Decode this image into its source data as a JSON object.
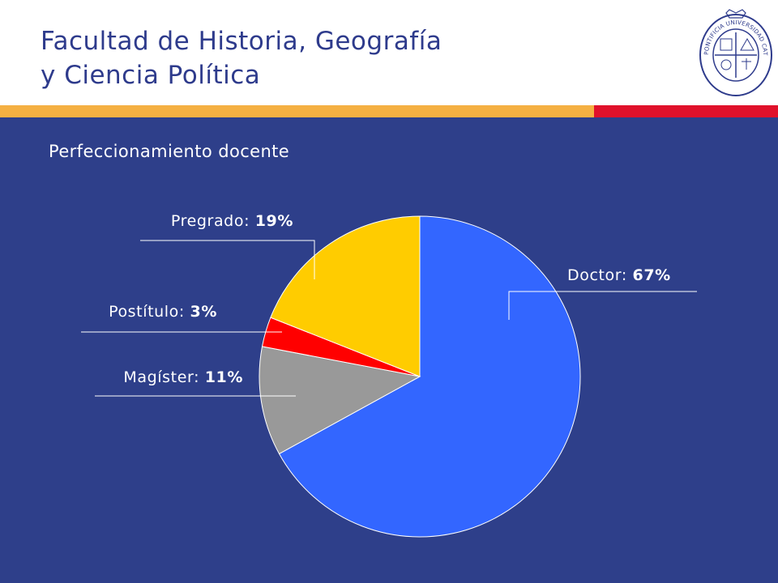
{
  "header": {
    "title_line1": "Facultad de Historia, Geografía",
    "title_line2": "y Ciencia Política",
    "seal_text": "PONTIFICIA UNIVERSIDAD CATÓLICA DE CHILE"
  },
  "colors": {
    "title": "#2e3b8c",
    "background": "#2e3f8a",
    "stripe_orange": "#f5b042",
    "stripe_red": "#e0112b"
  },
  "main": {
    "subtitle": "Perfeccionamiento docente"
  },
  "chart_data": {
    "type": "pie",
    "title": "",
    "slices": [
      {
        "name": "Doctor",
        "value": 67,
        "label": "Doctor:",
        "value_label": "67%",
        "color": "#3366ff"
      },
      {
        "name": "Magíster",
        "value": 11,
        "label": "Magíster:",
        "value_label": "11%",
        "color": "#999999"
      },
      {
        "name": "Postítulo",
        "value": 3,
        "label": "Postítulo:",
        "value_label": "3%",
        "color": "#ff0000"
      },
      {
        "name": "Pregrado",
        "value": 19,
        "label": "Pregrado:",
        "value_label": "19%",
        "color": "#ffcc00"
      }
    ],
    "direction": "clockwise",
    "start": "top",
    "legend": "none"
  }
}
